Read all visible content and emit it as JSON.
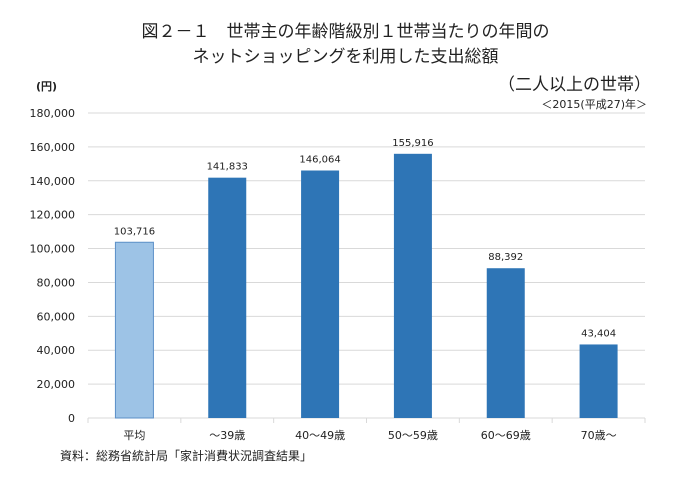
{
  "chart_data": {
    "type": "bar",
    "title": "図２－１　世帯主の年齢階級別１世帯当たりの年間の",
    "title_line2": "ネットショッピングを利用した支出総額",
    "subtitle": "（二人以上の世帯）",
    "subtitle2": "＜2015(平成27)年＞",
    "ylabel": "(円)",
    "xlabel": "",
    "source": "資料：総務省統計局「家計消費状況調査結果」",
    "categories": [
      "平均",
      "～39歳",
      "40～49歳",
      "50～59歳",
      "60～69歳",
      "70歳～"
    ],
    "values": [
      103716,
      141833,
      146064,
      155916,
      88392,
      43404
    ],
    "data_labels": [
      "103,716",
      "141,833",
      "146,064",
      "155,916",
      "88,392",
      "43,404"
    ],
    "ylim": [
      0,
      180000
    ],
    "yticks": [
      "0",
      "20,000",
      "40,000",
      "60,000",
      "80,000",
      "100,000",
      "120,000",
      "140,000",
      "160,000",
      "180,000"
    ],
    "grid": true,
    "legend": "none",
    "colors": {
      "average": "#9dc3e6",
      "average_border": "#5b8fc7",
      "bars": "#2e75b6",
      "grid": "#d9d9d9"
    }
  }
}
